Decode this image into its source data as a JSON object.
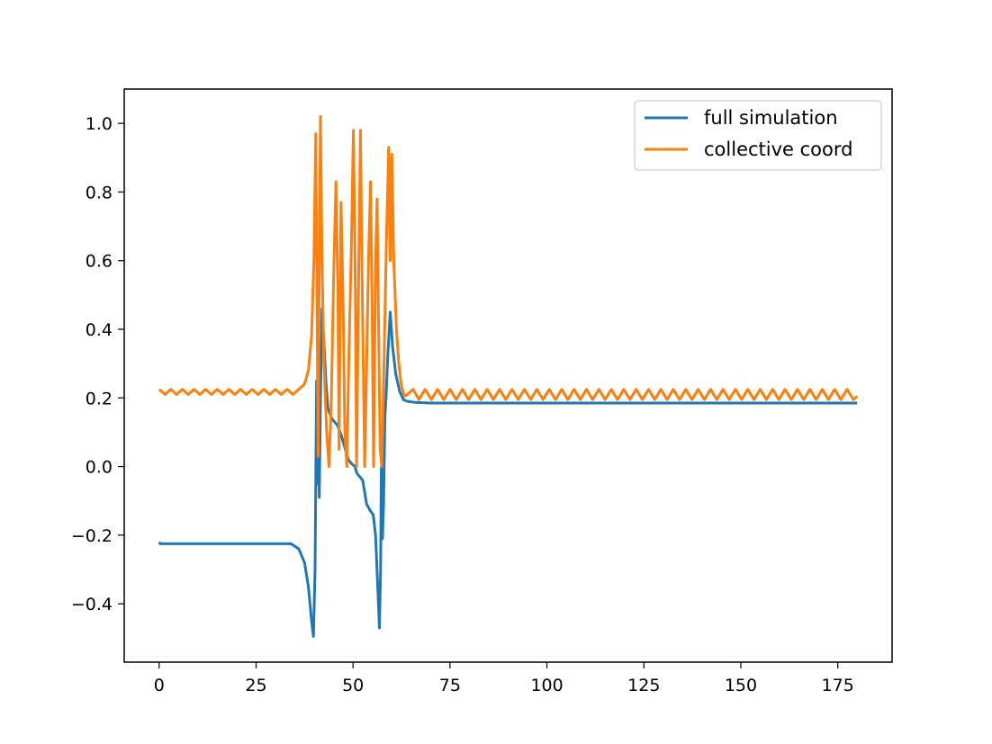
{
  "chart_data": {
    "type": "line",
    "title": "",
    "xlabel": "",
    "ylabel": "",
    "xlim": [
      -9,
      189
    ],
    "ylim": [
      -0.57,
      1.1
    ],
    "xticks": [
      0,
      25,
      50,
      75,
      100,
      125,
      150,
      175
    ],
    "yticks": [
      -0.4,
      -0.2,
      0.0,
      0.2,
      0.4,
      0.6,
      0.8,
      1.0
    ],
    "xtick_labels": [
      "0",
      "25",
      "50",
      "75",
      "100",
      "125",
      "150",
      "175"
    ],
    "ytick_labels": [
      "−0.4",
      "−0.2",
      "0.0",
      "0.2",
      "0.4",
      "0.6",
      "0.8",
      "1.0"
    ],
    "grid": false,
    "legend_position": "top-right",
    "series": [
      {
        "name": "full simulation",
        "color": "#1f77b4",
        "points": [
          [
            0,
            -0.22
          ],
          [
            0.3,
            -0.225
          ],
          [
            10,
            -0.225
          ],
          [
            20,
            -0.225
          ],
          [
            30,
            -0.225
          ],
          [
            34,
            -0.225
          ],
          [
            36,
            -0.24
          ],
          [
            37.5,
            -0.28
          ],
          [
            38.5,
            -0.35
          ],
          [
            39.3,
            -0.45
          ],
          [
            39.8,
            -0.495
          ],
          [
            40.2,
            -0.3
          ],
          [
            40.6,
            0.25
          ],
          [
            40.9,
            -0.05
          ],
          [
            41.1,
            0.03
          ],
          [
            41.3,
            -0.09
          ],
          [
            41.6,
            0.2
          ],
          [
            42,
            0.46
          ],
          [
            42.5,
            0.36
          ],
          [
            43,
            0.25
          ],
          [
            43.5,
            0.17
          ],
          [
            44.5,
            0.14
          ],
          [
            46,
            0.12
          ],
          [
            47,
            0.09
          ],
          [
            48,
            0.05
          ],
          [
            48.8,
            0.02
          ],
          [
            49.5,
            0.01
          ],
          [
            50.5,
            0.0
          ],
          [
            51,
            -0.02
          ],
          [
            52.5,
            -0.04
          ],
          [
            53.5,
            -0.11
          ],
          [
            54.5,
            -0.13
          ],
          [
            55.2,
            -0.14
          ],
          [
            55.8,
            -0.2
          ],
          [
            56.3,
            -0.33
          ],
          [
            56.8,
            -0.47
          ],
          [
            57.1,
            -0.3
          ],
          [
            57.3,
            0.0
          ],
          [
            57.6,
            -0.21
          ],
          [
            57.9,
            -0.1
          ],
          [
            58.2,
            0.14
          ],
          [
            58.5,
            0.2
          ],
          [
            59,
            0.33
          ],
          [
            59.6,
            0.45
          ],
          [
            60.2,
            0.35
          ],
          [
            61,
            0.27
          ],
          [
            62,
            0.22
          ],
          [
            63,
            0.195
          ],
          [
            64,
            0.19
          ],
          [
            66,
            0.187
          ],
          [
            70,
            0.185
          ],
          [
            100,
            0.185
          ],
          [
            150,
            0.185
          ],
          [
            180,
            0.185
          ]
        ]
      },
      {
        "name": "collective coord",
        "color": "#ff7f0e",
        "points": [
          [
            0,
            0.225
          ],
          [
            1.5,
            0.21
          ],
          [
            3,
            0.225
          ],
          [
            4.5,
            0.21
          ],
          [
            6,
            0.225
          ],
          [
            7.5,
            0.21
          ],
          [
            9,
            0.225
          ],
          [
            10.5,
            0.21
          ],
          [
            12,
            0.225
          ],
          [
            13.5,
            0.21
          ],
          [
            15,
            0.225
          ],
          [
            16.5,
            0.21
          ],
          [
            18,
            0.225
          ],
          [
            19.5,
            0.21
          ],
          [
            21,
            0.225
          ],
          [
            22.5,
            0.21
          ],
          [
            24,
            0.225
          ],
          [
            25.5,
            0.21
          ],
          [
            27,
            0.225
          ],
          [
            28.5,
            0.21
          ],
          [
            30,
            0.225
          ],
          [
            31.5,
            0.21
          ],
          [
            33,
            0.225
          ],
          [
            34.5,
            0.21
          ],
          [
            36,
            0.225
          ],
          [
            37.5,
            0.24
          ],
          [
            38.5,
            0.28
          ],
          [
            39.3,
            0.38
          ],
          [
            39.9,
            0.6
          ],
          [
            40.4,
            0.97
          ],
          [
            40.7,
            0.5
          ],
          [
            41,
            0.03
          ],
          [
            41.3,
            0.6
          ],
          [
            41.6,
            1.02
          ],
          [
            42,
            0.6
          ],
          [
            42.5,
            0.3
          ],
          [
            43.2,
            0.1
          ],
          [
            43.8,
            0.0
          ],
          [
            44.4,
            0.2
          ],
          [
            45,
            0.55
          ],
          [
            45.6,
            0.83
          ],
          [
            46.1,
            0.5
          ],
          [
            46.4,
            0.05
          ],
          [
            46.9,
            0.77
          ],
          [
            47.4,
            0.5
          ],
          [
            47.9,
            0.1
          ],
          [
            48.4,
            0.0
          ],
          [
            48.9,
            0.3
          ],
          [
            49.5,
            0.6
          ],
          [
            50.1,
            0.98
          ],
          [
            50.6,
            0.5
          ],
          [
            50.9,
            0.0
          ],
          [
            51.4,
            0.5
          ],
          [
            51.9,
            0.98
          ],
          [
            52.4,
            0.5
          ],
          [
            53,
            0.0
          ],
          [
            53.5,
            0.3
          ],
          [
            54,
            0.6
          ],
          [
            54.5,
            0.83
          ],
          [
            54.9,
            0.5
          ],
          [
            55.3,
            0.0
          ],
          [
            55.8,
            0.6
          ],
          [
            56.2,
            0.78
          ],
          [
            56.6,
            0.4
          ],
          [
            57,
            0.05
          ],
          [
            57.4,
            0.0
          ],
          [
            58,
            0.3
          ],
          [
            58.6,
            0.65
          ],
          [
            59.2,
            0.93
          ],
          [
            59.6,
            0.6
          ],
          [
            60,
            0.91
          ],
          [
            60.5,
            0.6
          ],
          [
            61.2,
            0.4
          ],
          [
            61.8,
            0.3
          ],
          [
            62.4,
            0.24
          ],
          [
            63.2,
            0.205
          ],
          [
            64,
            0.21
          ],
          [
            65.5,
            0.225
          ],
          [
            67,
            0.195
          ],
          [
            68.6,
            0.225
          ],
          [
            70.2,
            0.195
          ],
          [
            71.8,
            0.225
          ],
          [
            73.4,
            0.195
          ],
          [
            75,
            0.225
          ],
          [
            76.6,
            0.195
          ],
          [
            78.2,
            0.225
          ],
          [
            79.8,
            0.195
          ],
          [
            81.4,
            0.225
          ],
          [
            83,
            0.195
          ],
          [
            84.6,
            0.225
          ],
          [
            86.2,
            0.195
          ],
          [
            87.8,
            0.225
          ],
          [
            89.4,
            0.195
          ],
          [
            91,
            0.225
          ],
          [
            92.6,
            0.195
          ],
          [
            94.2,
            0.225
          ],
          [
            95.8,
            0.195
          ],
          [
            97.4,
            0.225
          ],
          [
            99,
            0.195
          ],
          [
            100.6,
            0.225
          ],
          [
            102.2,
            0.195
          ],
          [
            103.8,
            0.225
          ],
          [
            105.4,
            0.195
          ],
          [
            107,
            0.225
          ],
          [
            108.6,
            0.195
          ],
          [
            110.2,
            0.225
          ],
          [
            111.8,
            0.195
          ],
          [
            113.4,
            0.225
          ],
          [
            115,
            0.195
          ],
          [
            116.6,
            0.225
          ],
          [
            118.2,
            0.195
          ],
          [
            119.8,
            0.225
          ],
          [
            121.4,
            0.195
          ],
          [
            123,
            0.225
          ],
          [
            124.6,
            0.195
          ],
          [
            126.2,
            0.225
          ],
          [
            127.8,
            0.195
          ],
          [
            129.4,
            0.225
          ],
          [
            131,
            0.195
          ],
          [
            132.6,
            0.225
          ],
          [
            134.2,
            0.195
          ],
          [
            135.8,
            0.225
          ],
          [
            137.4,
            0.195
          ],
          [
            139,
            0.225
          ],
          [
            140.6,
            0.195
          ],
          [
            142.2,
            0.225
          ],
          [
            143.8,
            0.195
          ],
          [
            145.4,
            0.225
          ],
          [
            147,
            0.195
          ],
          [
            148.6,
            0.225
          ],
          [
            150.2,
            0.195
          ],
          [
            151.8,
            0.225
          ],
          [
            153.4,
            0.195
          ],
          [
            155,
            0.225
          ],
          [
            156.6,
            0.195
          ],
          [
            158.2,
            0.225
          ],
          [
            159.8,
            0.195
          ],
          [
            161.4,
            0.225
          ],
          [
            163,
            0.195
          ],
          [
            164.6,
            0.225
          ],
          [
            166.2,
            0.195
          ],
          [
            167.8,
            0.225
          ],
          [
            169.4,
            0.195
          ],
          [
            171,
            0.225
          ],
          [
            172.6,
            0.195
          ],
          [
            174.2,
            0.225
          ],
          [
            175.8,
            0.195
          ],
          [
            177.4,
            0.225
          ],
          [
            179,
            0.195
          ],
          [
            180,
            0.205
          ]
        ]
      }
    ]
  }
}
